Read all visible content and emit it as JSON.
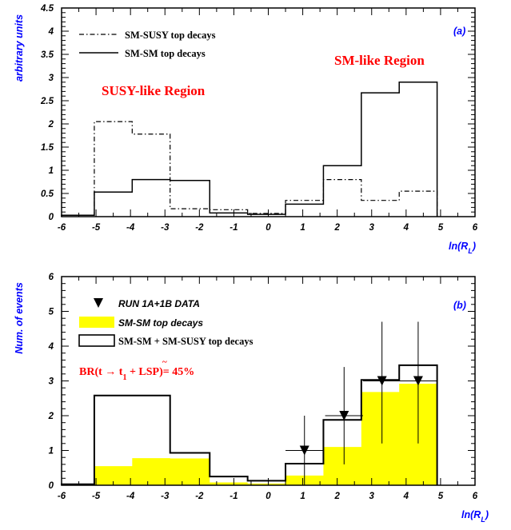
{
  "chart_data": [
    {
      "panel_label": "(a)",
      "type": "histogram",
      "ylabel": "arbitrary units",
      "xlabel_main": "ln(R",
      "xlabel_sub": "L",
      "xlabel_close": ")",
      "xlim": [
        -6,
        6
      ],
      "ylim": [
        0,
        4.5
      ],
      "xticks": [
        "-6",
        "-5",
        "-4",
        "-3",
        "-2",
        "-1",
        "0",
        "1",
        "2",
        "3",
        "4",
        "5",
        "6"
      ],
      "yticks": [
        "0",
        "0.5",
        "1",
        "1.5",
        "2",
        "2.5",
        "3",
        "3.5",
        "4",
        "4.5"
      ],
      "legend": [
        {
          "label": "SM-SUSY top decays",
          "style": "dashdot"
        },
        {
          "label": "SM-SM top decays",
          "style": "solid"
        }
      ],
      "annotations": {
        "susy_region": "SUSY-like Region",
        "sm_region": "SM-like Region"
      },
      "series": [
        {
          "name": "SM-SUSY top decays",
          "style": "dashdot",
          "bins": [
            {
              "x0": -6.0,
              "x1": -5.05,
              "y": 0.03
            },
            {
              "x0": -5.05,
              "x1": -3.95,
              "y": 2.05
            },
            {
              "x0": -3.95,
              "x1": -2.85,
              "y": 1.78
            },
            {
              "x0": -2.85,
              "x1": -1.7,
              "y": 0.17
            },
            {
              "x0": -1.7,
              "x1": -0.6,
              "y": 0.15
            },
            {
              "x0": -0.6,
              "x1": 0.5,
              "y": 0.07
            },
            {
              "x0": 0.5,
              "x1": 1.6,
              "y": 0.35
            },
            {
              "x0": 1.6,
              "x1": 2.7,
              "y": 0.8
            },
            {
              "x0": 2.7,
              "x1": 3.8,
              "y": 0.35
            },
            {
              "x0": 3.8,
              "x1": 4.9,
              "y": 0.55
            }
          ]
        },
        {
          "name": "SM-SM top decays",
          "style": "solid",
          "bins": [
            {
              "x0": -6.0,
              "x1": -5.05,
              "y": 0.03
            },
            {
              "x0": -5.05,
              "x1": -3.95,
              "y": 0.53
            },
            {
              "x0": -3.95,
              "x1": -2.85,
              "y": 0.8
            },
            {
              "x0": -2.85,
              "x1": -1.7,
              "y": 0.78
            },
            {
              "x0": -1.7,
              "x1": -0.6,
              "y": 0.08
            },
            {
              "x0": -0.6,
              "x1": 0.5,
              "y": 0.05
            },
            {
              "x0": 0.5,
              "x1": 1.6,
              "y": 0.27
            },
            {
              "x0": 1.6,
              "x1": 2.7,
              "y": 1.1
            },
            {
              "x0": 2.7,
              "x1": 3.8,
              "y": 2.67
            },
            {
              "x0": 3.8,
              "x1": 4.9,
              "y": 2.9
            }
          ]
        }
      ]
    },
    {
      "panel_label": "(b)",
      "type": "histogram",
      "ylabel": "Num. of events",
      "xlabel_main": "ln(R",
      "xlabel_sub": "L",
      "xlabel_close": ")",
      "xlim": [
        -6,
        6
      ],
      "ylim": [
        0,
        6
      ],
      "xticks": [
        "-6",
        "-5",
        "-4",
        "-3",
        "-2",
        "-1",
        "0",
        "1",
        "2",
        "3",
        "4",
        "5",
        "6"
      ],
      "yticks": [
        "0",
        "1",
        "2",
        "3",
        "4",
        "5",
        "6"
      ],
      "legend": [
        {
          "label": "RUN 1A+1B DATA",
          "style": "marker"
        },
        {
          "label": "SM-SM top decays",
          "style": "filled"
        },
        {
          "label": "SM-SM + SM-SUSY top decays",
          "style": "box"
        }
      ],
      "annotation": {
        "br_prefix": "BR(t → ",
        "br_stop": "t",
        "br_tilde": "~",
        "br_sub": "1",
        "br_suffix": " + LSP)= 45%"
      },
      "colors": {
        "fill": "#ffff00",
        "annotation": "#ff0000",
        "axis_label": "#0000ff"
      },
      "series": [
        {
          "name": "SM-SM top decays",
          "style": "filled",
          "bins": [
            {
              "x0": -6.0,
              "x1": -5.05,
              "y": 0.03
            },
            {
              "x0": -5.05,
              "x1": -3.95,
              "y": 0.55
            },
            {
              "x0": -3.95,
              "x1": -2.85,
              "y": 0.78
            },
            {
              "x0": -2.85,
              "x1": -1.7,
              "y": 0.77
            },
            {
              "x0": -1.7,
              "x1": -0.6,
              "y": 0.08
            },
            {
              "x0": -0.6,
              "x1": 0.5,
              "y": 0.05
            },
            {
              "x0": 0.5,
              "x1": 1.6,
              "y": 0.28
            },
            {
              "x0": 1.6,
              "x1": 2.7,
              "y": 1.1
            },
            {
              "x0": 2.7,
              "x1": 3.8,
              "y": 2.68
            },
            {
              "x0": 3.8,
              "x1": 4.9,
              "y": 2.92
            }
          ]
        },
        {
          "name": "SM-SM + SM-SUSY top decays",
          "style": "box",
          "bins": [
            {
              "x0": -6.0,
              "x1": -5.05,
              "y": 0.03
            },
            {
              "x0": -5.05,
              "x1": -3.95,
              "y": 2.58
            },
            {
              "x0": -3.95,
              "x1": -2.85,
              "y": 2.58
            },
            {
              "x0": -2.85,
              "x1": -1.7,
              "y": 0.93
            },
            {
              "x0": -1.7,
              "x1": -0.6,
              "y": 0.25
            },
            {
              "x0": -0.6,
              "x1": 0.5,
              "y": 0.13
            },
            {
              "x0": 0.5,
              "x1": 1.6,
              "y": 0.62
            },
            {
              "x0": 1.6,
              "x1": 2.7,
              "y": 1.88
            },
            {
              "x0": 2.7,
              "x1": 3.8,
              "y": 3.03
            },
            {
              "x0": 3.8,
              "x1": 4.9,
              "y": 3.45
            }
          ]
        }
      ],
      "data_points": [
        {
          "x": 1.05,
          "y": 1.0,
          "xerr": 0.55,
          "ylo": 0.0,
          "yhi": 2.0
        },
        {
          "x": 2.2,
          "y": 2.0,
          "xerr": 0.55,
          "ylo": 0.6,
          "yhi": 3.4
        },
        {
          "x": 3.3,
          "y": 3.0,
          "xerr": 0.55,
          "ylo": 1.2,
          "yhi": 4.7
        },
        {
          "x": 4.35,
          "y": 3.0,
          "xerr": 0.55,
          "ylo": 1.2,
          "yhi": 4.7
        }
      ]
    }
  ]
}
